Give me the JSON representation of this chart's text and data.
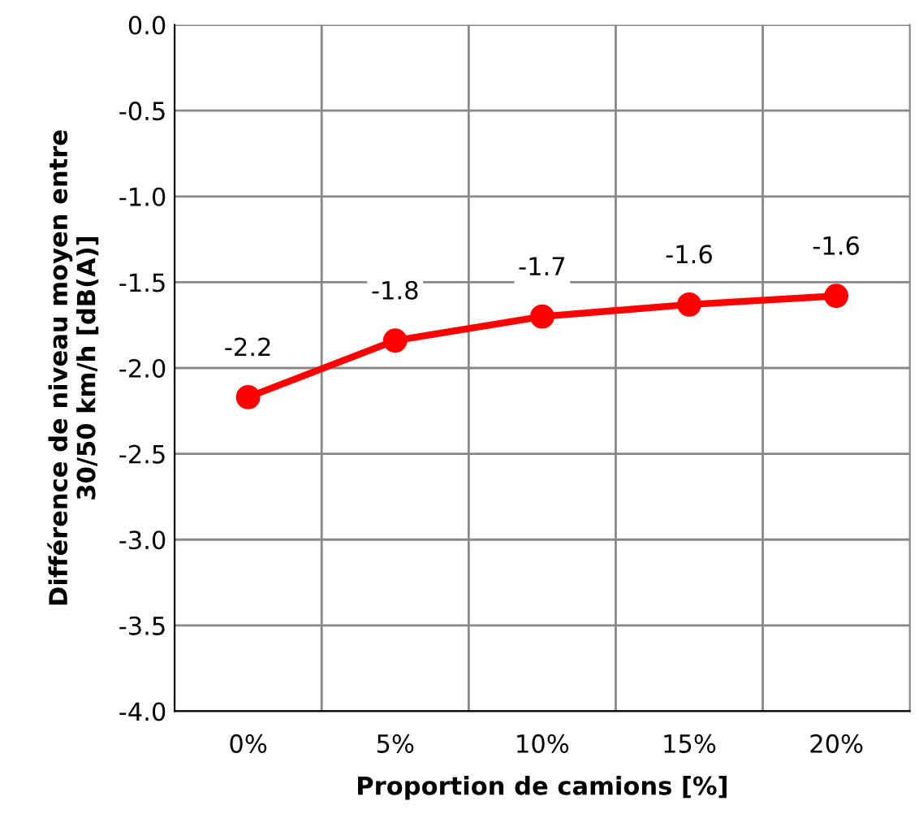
{
  "chart_data": {
    "type": "line",
    "xlabel": "Proportion de camions [%]",
    "ylabel": "Différence de niveau moyen entre\n30/50 km/h [dB(A)]",
    "categories": [
      "0%",
      "5%",
      "10%",
      "15%",
      "20%"
    ],
    "series": [
      {
        "color": "#ff0000",
        "values": [
          -2.17,
          -1.84,
          -1.7,
          -1.63,
          -1.58
        ],
        "value_labels": [
          "-2.2",
          "-1.8",
          "-1.7",
          "-1.6",
          "-1.6"
        ]
      }
    ],
    "ylim": [
      -4.0,
      0.0
    ],
    "yticks": [
      {
        "value": -4.0,
        "label": "-4.0"
      },
      {
        "value": -3.5,
        "label": "-3.5"
      },
      {
        "value": -3.0,
        "label": "-3.0"
      },
      {
        "value": -2.5,
        "label": "-2.5"
      },
      {
        "value": -2.0,
        "label": "-2.0"
      },
      {
        "value": -1.5,
        "label": "-1.5"
      },
      {
        "value": -1.0,
        "label": "-1.0"
      },
      {
        "value": -0.5,
        "label": "-0.5"
      },
      {
        "value": 0.0,
        "label": "0.0"
      }
    ],
    "grid": true,
    "marker": "circle",
    "line_style": "solid"
  }
}
